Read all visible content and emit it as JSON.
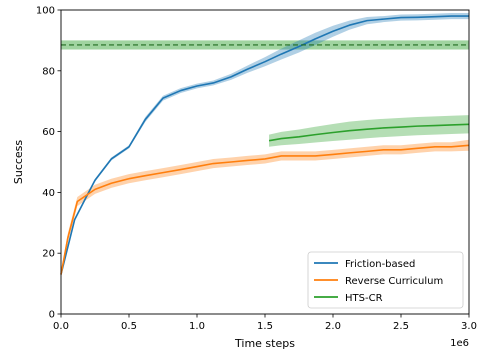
{
  "chart_data": {
    "type": "line",
    "xlabel": "Time steps",
    "ylabel": "Success",
    "x_offset_label": "1e6",
    "xlim": [
      0,
      3.0
    ],
    "ylim": [
      0,
      100
    ],
    "x_ticks": [
      0.0,
      0.5,
      1.0,
      1.5,
      2.0,
      2.5,
      3.0
    ],
    "x_tick_labels": [
      "0.0",
      "0.5",
      "1.0",
      "1.5",
      "2.0",
      "2.5",
      "3.0"
    ],
    "y_ticks": [
      0,
      20,
      40,
      60,
      80,
      100
    ],
    "y_tick_labels": [
      "0",
      "20",
      "40",
      "60",
      "80",
      "100"
    ],
    "grid": false,
    "legend_position": "lower-right",
    "series": [
      {
        "name": "Friction-based",
        "color": "#1f77b4",
        "x": [
          0.0,
          0.05,
          0.1,
          0.18,
          0.25,
          0.37,
          0.5,
          0.62,
          0.75,
          0.88,
          1.0,
          1.12,
          1.25,
          1.37,
          1.5,
          1.62,
          1.75,
          1.87,
          2.0,
          2.12,
          2.25,
          2.37,
          2.5,
          2.62,
          2.75,
          2.87,
          3.0
        ],
        "y": [
          13,
          22,
          31,
          38,
          44,
          51,
          55,
          64,
          71,
          73.5,
          75,
          76,
          78,
          80.5,
          83,
          85.5,
          88,
          90.5,
          93,
          95,
          96.5,
          97,
          97.5,
          97.6,
          97.8,
          98,
          98
        ],
        "band": [
          0.5,
          0.5,
          0.5,
          0.5,
          0.5,
          0.5,
          0.5,
          0.8,
          0.8,
          0.8,
          0.8,
          0.8,
          1.0,
          1.2,
          1.5,
          1.8,
          2.0,
          2.0,
          1.8,
          1.5,
          1.2,
          1.0,
          1.0,
          1.0,
          1.0,
          1.0,
          1.0
        ]
      },
      {
        "name": "Reverse Curriculum",
        "color": "#ff7f0e",
        "x": [
          0.0,
          0.05,
          0.12,
          0.25,
          0.37,
          0.5,
          0.62,
          0.75,
          0.88,
          1.0,
          1.12,
          1.25,
          1.37,
          1.5,
          1.62,
          1.75,
          1.87,
          2.0,
          2.12,
          2.25,
          2.37,
          2.5,
          2.62,
          2.75,
          2.87,
          3.0
        ],
        "y": [
          13,
          25,
          37,
          41,
          43,
          44.5,
          45.5,
          46.5,
          47.5,
          48.5,
          49.5,
          50,
          50.5,
          51,
          52,
          52,
          52,
          52.5,
          53,
          53.5,
          54,
          54,
          54.5,
          55,
          55,
          55.5
        ],
        "band": [
          1.0,
          1.5,
          1.5,
          1.5,
          1.5,
          1.5,
          1.5,
          1.5,
          1.5,
          1.5,
          1.5,
          1.5,
          1.5,
          1.5,
          1.5,
          1.5,
          1.5,
          1.5,
          1.5,
          1.5,
          1.5,
          1.5,
          1.5,
          1.5,
          1.5,
          1.8
        ]
      },
      {
        "name": "HTS-CR",
        "color": "#2ca02c",
        "x": [
          1.53,
          1.62,
          1.75,
          1.87,
          2.0,
          2.12,
          2.25,
          2.37,
          2.5,
          2.62,
          2.75,
          2.87,
          3.0
        ],
        "y": [
          57,
          57.7,
          58.3,
          59,
          59.7,
          60.3,
          60.8,
          61.2,
          61.5,
          61.8,
          62,
          62.2,
          62.4
        ],
        "band": [
          2.0,
          2.2,
          2.4,
          2.6,
          2.8,
          3.0,
          3.0,
          3.0,
          3.0,
          3.0,
          3.0,
          3.0,
          3.0
        ]
      }
    ],
    "reference_line": {
      "color": "#2ca02c",
      "style": "dashed",
      "y": 88.5,
      "band": [
        87,
        90
      ]
    }
  }
}
